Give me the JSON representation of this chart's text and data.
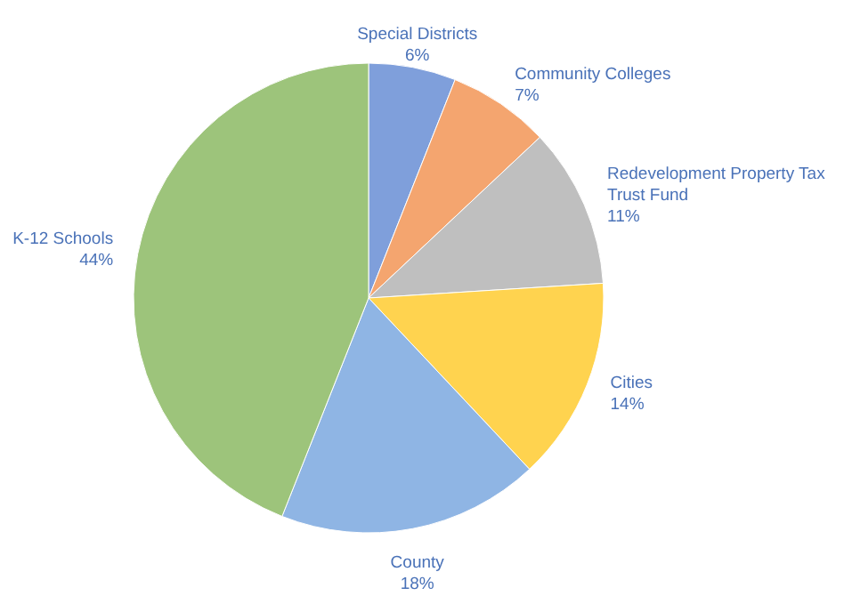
{
  "chart_data": {
    "type": "pie",
    "categories": [
      "Special Districts",
      "Community Colleges",
      "Redevelopment Property Tax Trust Fund",
      "Cities",
      "County",
      "K-12 Schools"
    ],
    "values": [
      6,
      7,
      11,
      14,
      18,
      44
    ],
    "colors": [
      "#7f9fdb",
      "#f4a56f",
      "#bfbfbf",
      "#ffd34f",
      "#8fb5e4",
      "#9dc47b"
    ],
    "value_labels": [
      "6%",
      "7%",
      "11%",
      "14%",
      "18%",
      "44%"
    ]
  }
}
